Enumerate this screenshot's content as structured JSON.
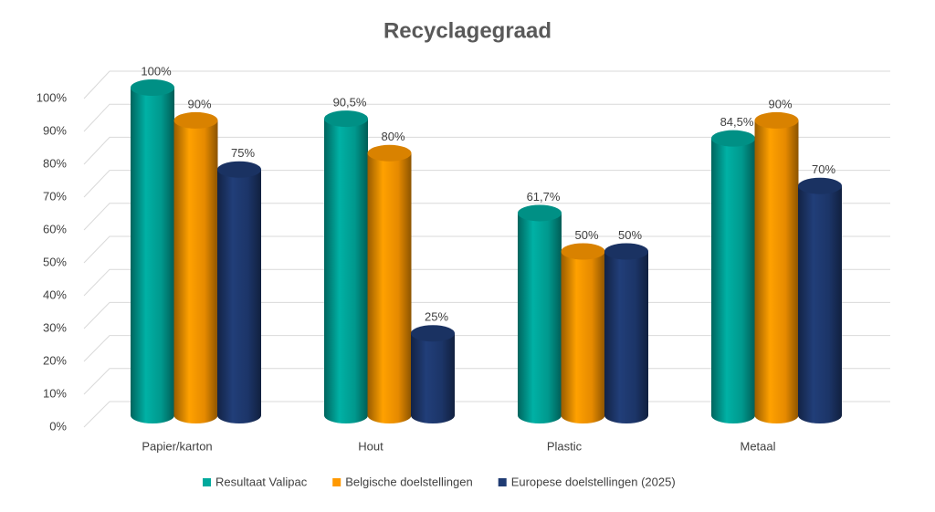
{
  "chart_data": {
    "type": "bar",
    "title": "Recyclagegraad",
    "categories": [
      "Papier/karton",
      "Hout",
      "Plastic",
      "Metaal"
    ],
    "series": [
      {
        "name": "Resultaat Valipac",
        "color": "#00a99d",
        "values": [
          100,
          90.5,
          61.7,
          84.5
        ],
        "value_labels": [
          "100%",
          "90,5%",
          "61,7%",
          "84,5%"
        ]
      },
      {
        "name": "Belgische doelstellingen",
        "color": "#ff9900",
        "values": [
          90,
          80,
          50,
          90
        ],
        "value_labels": [
          "90%",
          "80%",
          "50%",
          "90%"
        ]
      },
      {
        "name": "Europese doelstellingen (2025)",
        "color": "#1f3b73",
        "values": [
          75,
          25,
          50,
          70
        ],
        "value_labels": [
          "75%",
          "25%",
          "50%",
          "70%"
        ]
      }
    ],
    "ylim": [
      0,
      100
    ],
    "yticks": [
      {
        "value": 0,
        "label": "0%"
      },
      {
        "value": 10,
        "label": "10%"
      },
      {
        "value": 20,
        "label": "20%"
      },
      {
        "value": 30,
        "label": "30%"
      },
      {
        "value": 40,
        "label": "40%"
      },
      {
        "value": 50,
        "label": "50%"
      },
      {
        "value": 60,
        "label": "60%"
      },
      {
        "value": 70,
        "label": "70%"
      },
      {
        "value": 80,
        "label": "80%"
      },
      {
        "value": 90,
        "label": "90%"
      },
      {
        "value": 100,
        "label": "100%"
      }
    ],
    "grid": true,
    "legend": "bottom"
  }
}
